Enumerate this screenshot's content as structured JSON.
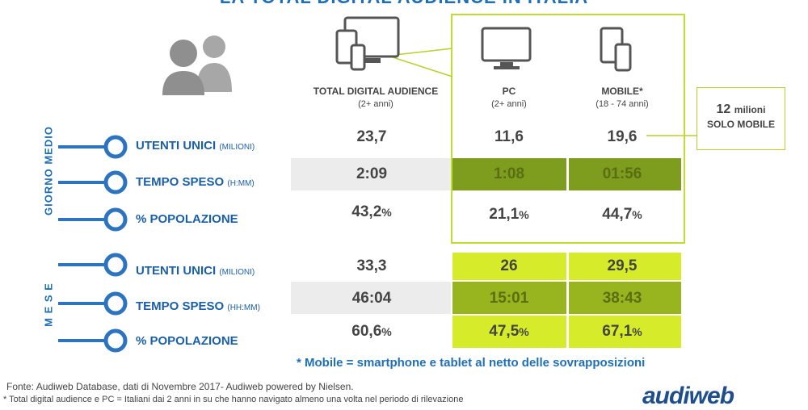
{
  "title": "LA TOTAL DIGITAL AUDIENCE IN ITALIA",
  "columns": [
    {
      "label": "TOTAL DIGITAL AUDIENCE",
      "sub": "(2+ anni)",
      "icon": "multi-device-icon"
    },
    {
      "label": "PC",
      "sub": "(2+ anni)",
      "icon": "monitor-icon"
    },
    {
      "label": "MOBILE*",
      "sub": "(18 - 74 anni)",
      "icon": "mobile-devices-icon"
    }
  ],
  "sections": {
    "daily": "GIORNO MEDIO",
    "monthly": "M E S E"
  },
  "rows": [
    {
      "label": "UTENTI UNICI",
      "unit": "(MILIONI)",
      "values": [
        "23,7",
        "11,6",
        "19,6"
      ],
      "suffix": ""
    },
    {
      "label": "TEMPO SPESO",
      "unit": "(H:MM)",
      "values": [
        "2:09",
        "1:08",
        "01:56"
      ],
      "suffix": ""
    },
    {
      "label": "% POPOLAZIONE",
      "unit": "",
      "values": [
        "43,2",
        "21,1",
        "44,7"
      ],
      "suffix": "%"
    },
    {
      "label": "UTENTI UNICI",
      "unit": "(MILIONI)",
      "values": [
        "33,3",
        "26",
        "29,5"
      ],
      "suffix": ""
    },
    {
      "label": "TEMPO SPESO",
      "unit": "(HH:MM)",
      "values": [
        "46:04",
        "15:01",
        "38:43"
      ],
      "suffix": ""
    },
    {
      "label": "% POPOLAZIONE",
      "unit": "",
      "values": [
        "60,6",
        "47,5",
        "67,1"
      ],
      "suffix": "%"
    }
  ],
  "callout": {
    "number": "12",
    "unit": "milioni",
    "text": "SOLO MOBILE"
  },
  "note": "* Mobile = smartphone e tablet al netto delle sovrapposizioni",
  "footer": {
    "source": "Fonte: Audiweb Database, dati di Novembre 2017- Audiweb powered by Nielsen.",
    "definition": "* Total digital audience e PC = Italiani dai 2 anni in su che hanno navigato almeno una volta nel periodo di rilevazione"
  },
  "logo": "audiweb",
  "colors": {
    "accent": "#1f6fb6",
    "dark_green": "#7e9c1e",
    "lime": "#d6ec2a",
    "border": "#b6d22a"
  }
}
